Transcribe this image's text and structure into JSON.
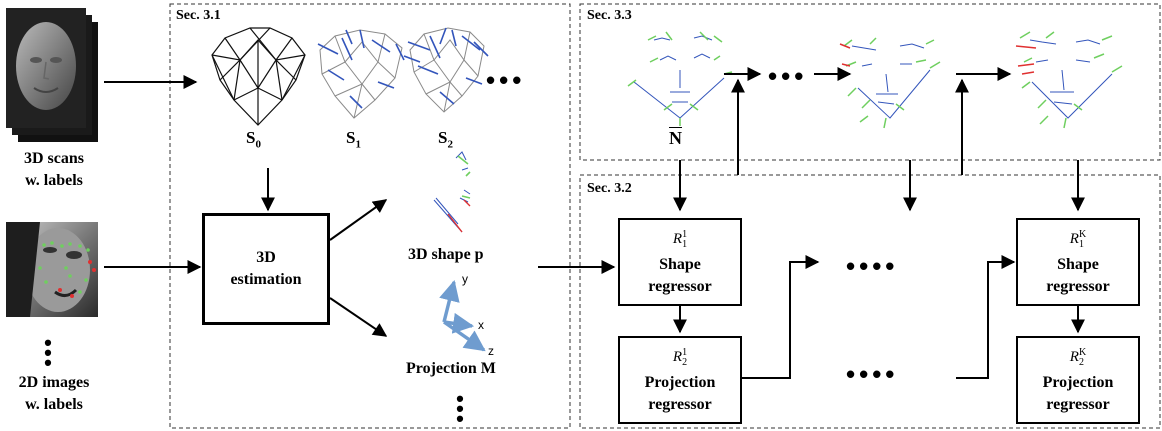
{
  "sections": {
    "s31": "Sec. 3.1",
    "s32": "Sec. 3.2",
    "s33": "Sec. 3.3"
  },
  "inputs": {
    "scans_line1": "3D scans",
    "scans_line2": "w. labels",
    "images_line1": "2D images",
    "images_line2": "w. labels"
  },
  "shapes": {
    "s0": "S",
    "s0_sub": "0",
    "s1": "S",
    "s1_sub": "1",
    "s2": "S",
    "s2_sub": "2",
    "nbar": "N"
  },
  "estimation": {
    "line1": "3D",
    "line2": "estimation"
  },
  "outputs": {
    "shape_label": "3D shape p",
    "projection_label": "Projection M",
    "axis_x": "x",
    "axis_y": "y",
    "axis_z": "z"
  },
  "regressors": {
    "r11": "R",
    "r11_sub": "1",
    "r11_sup": "1",
    "r21": "R",
    "r21_sub": "2",
    "r21_sup": "1",
    "r1k": "R",
    "r1k_sub": "1",
    "r1k_sup": "K",
    "r2k": "R",
    "r2k_sub": "2",
    "r2k_sup": "K",
    "shape_line1": "Shape",
    "shape_line2": "regressor",
    "proj_line1": "Projection",
    "proj_line2": "regressor"
  },
  "colors": {
    "arrow": "#000000",
    "axis_blue": "#6f9ccf",
    "mesh_black": "#111111",
    "mesh_gray": "#8a8a8a",
    "mesh_blue": "#3355bb",
    "green": "#6fcf5f",
    "red": "#e03030"
  }
}
